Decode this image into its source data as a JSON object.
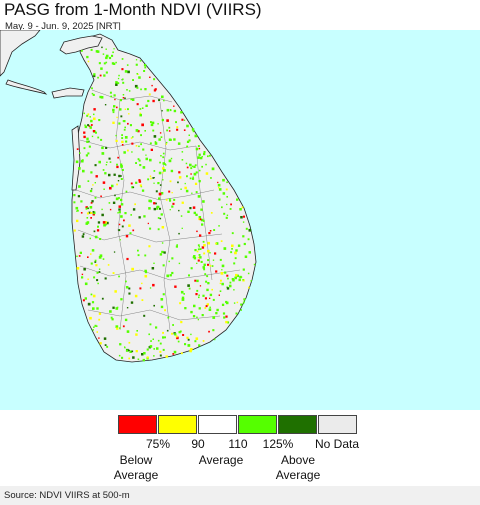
{
  "header": {
    "title": "PASG from 1-Month NDVI (VIIRS)",
    "subtitle": "May. 9 - Jun. 9, 2025 [NRT]"
  },
  "map": {
    "region": "Sri Lanka",
    "colors": {
      "ocean": "#c8ffff",
      "land": "#f0f0f0",
      "land_alt": "#e8e8e8",
      "no_data": "#ebebeb",
      "boundary": "#555555"
    }
  },
  "legend": {
    "classes": [
      {
        "color": "#ff0000"
      },
      {
        "color": "#ffff00"
      },
      {
        "color": "#ffffff"
      },
      {
        "color": "#55ff00"
      },
      {
        "color": "#1f7000"
      },
      {
        "color": "#ebebeb"
      }
    ],
    "ticks": [
      "75%",
      "90",
      "110",
      "125%",
      "No Data"
    ],
    "captions": {
      "below_1": "Below",
      "below_2": "Average",
      "average": "Average",
      "above_1": "Above",
      "above_2": "Average"
    }
  },
  "footer": {
    "source": "Source: NDVI VIIRS at 500-m"
  }
}
